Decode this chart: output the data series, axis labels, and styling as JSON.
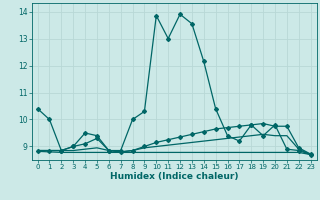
{
  "xlabel": "Humidex (Indice chaleur)",
  "xlim": [
    -0.5,
    23.5
  ],
  "ylim": [
    8.5,
    14.3
  ],
  "yticks": [
    9,
    10,
    11,
    12,
    13,
    14
  ],
  "xticks": [
    0,
    1,
    2,
    3,
    4,
    5,
    6,
    7,
    8,
    9,
    10,
    11,
    12,
    13,
    14,
    15,
    16,
    17,
    18,
    19,
    20,
    21,
    22,
    23
  ],
  "bg_color": "#cce9e7",
  "grid_color": "#b8d8d6",
  "line_color": "#006666",
  "line1": {
    "x": [
      0,
      1,
      2,
      3,
      4,
      5,
      6,
      7,
      8,
      9,
      10,
      11,
      12,
      13,
      14,
      15,
      16,
      17,
      18,
      19,
      20,
      21,
      22,
      23
    ],
    "y": [
      10.4,
      10.0,
      8.85,
      9.0,
      9.5,
      9.4,
      8.85,
      8.85,
      10.0,
      10.3,
      13.85,
      13.0,
      13.9,
      13.55,
      12.15,
      10.4,
      9.4,
      9.2,
      9.8,
      9.4,
      9.8,
      8.9,
      8.85,
      8.7
    ],
    "has_markers": true
  },
  "line2": {
    "x": [
      0,
      1,
      2,
      3,
      4,
      5,
      6,
      7,
      8,
      9,
      10,
      11,
      12,
      13,
      14,
      15,
      16,
      17,
      18,
      19,
      20,
      21,
      22,
      23
    ],
    "y": [
      8.85,
      8.85,
      8.85,
      9.0,
      9.1,
      9.3,
      8.85,
      8.8,
      8.85,
      9.0,
      9.15,
      9.25,
      9.35,
      9.45,
      9.55,
      9.65,
      9.7,
      9.75,
      9.8,
      9.85,
      9.75,
      9.75,
      8.95,
      8.72
    ],
    "has_markers": true
  },
  "line3": {
    "x": [
      0,
      1,
      2,
      3,
      4,
      5,
      6,
      7,
      8,
      9,
      10,
      11,
      12,
      13,
      14,
      15,
      16,
      17,
      18,
      19,
      20,
      21,
      22,
      23
    ],
    "y": [
      8.85,
      8.85,
      8.85,
      8.85,
      8.9,
      8.95,
      8.85,
      8.8,
      8.85,
      8.95,
      9.0,
      9.05,
      9.1,
      9.15,
      9.2,
      9.25,
      9.3,
      9.35,
      9.4,
      9.45,
      9.4,
      9.4,
      8.9,
      8.7
    ],
    "has_markers": false
  },
  "line4": {
    "x": [
      0,
      1,
      2,
      3,
      4,
      5,
      6,
      7,
      8,
      9,
      10,
      11,
      12,
      13,
      14,
      15,
      16,
      17,
      18,
      19,
      20,
      21,
      22,
      23
    ],
    "y": [
      8.82,
      8.8,
      8.78,
      8.78,
      8.78,
      8.78,
      8.78,
      8.78,
      8.78,
      8.78,
      8.78,
      8.78,
      8.78,
      8.78,
      8.78,
      8.78,
      8.78,
      8.78,
      8.78,
      8.78,
      8.78,
      8.78,
      8.78,
      8.7
    ],
    "has_markers": false
  }
}
